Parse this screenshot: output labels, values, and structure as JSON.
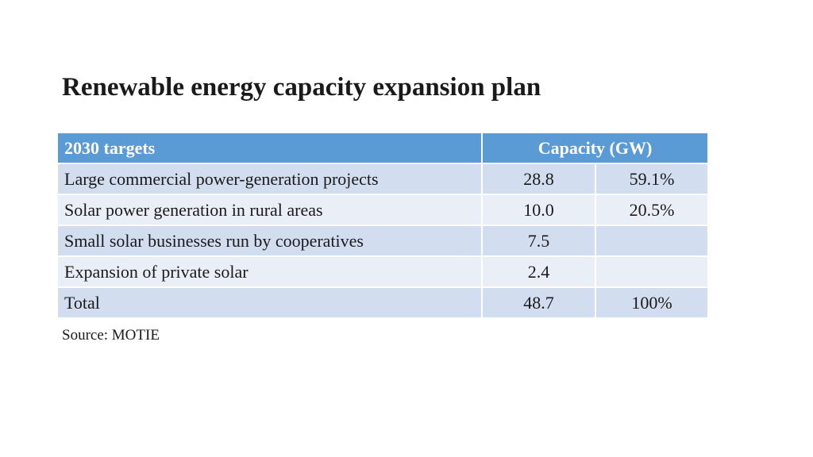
{
  "title": "Renewable energy capacity expansion plan",
  "table": {
    "headers": [
      "2030 targets",
      "Capacity (GW)"
    ],
    "rows": [
      {
        "label": "Large commercial power-generation projects",
        "capacity": "28.8",
        "share": "59.1%"
      },
      {
        "label": "Solar power generation in rural areas",
        "capacity": "10.0",
        "share": "20.5%"
      },
      {
        "label": "Small solar businesses run by cooperatives",
        "capacity": "7.5",
        "share": ""
      },
      {
        "label": "Expansion of private solar",
        "capacity": "2.4",
        "share": ""
      },
      {
        "label": "Total",
        "capacity": "48.7",
        "share": "100%"
      }
    ]
  },
  "source": "Source: MOTIE",
  "colors": {
    "header_bg": "#5b9bd5",
    "row_dark": "#d2deef",
    "row_light": "#eaeff7"
  }
}
